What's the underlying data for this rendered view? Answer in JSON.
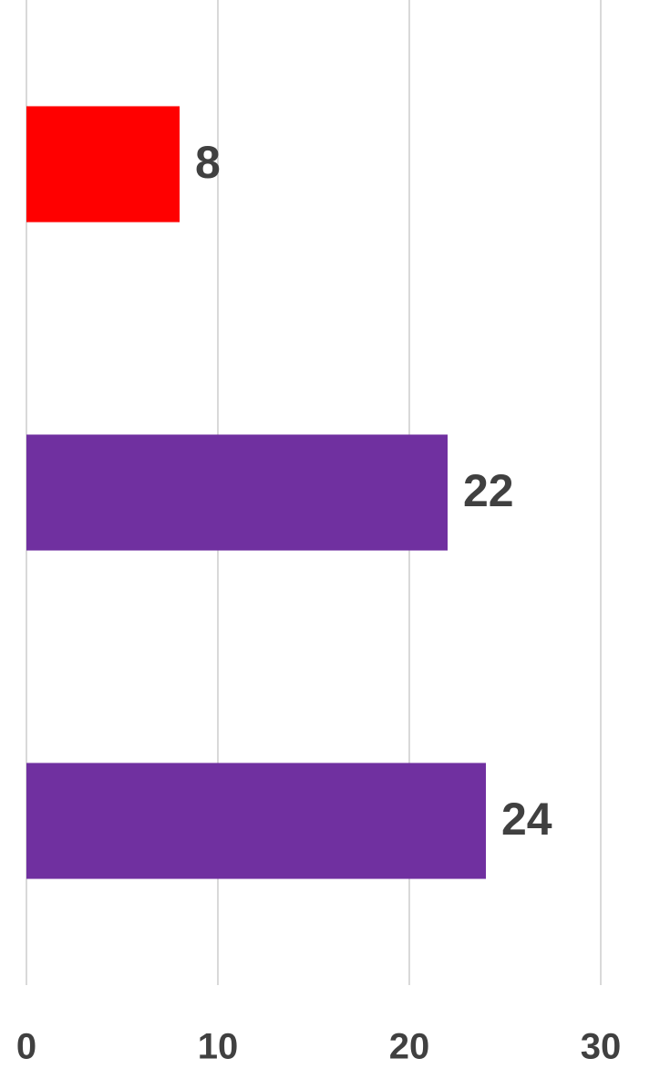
{
  "chart_data": {
    "type": "bar",
    "orientation": "horizontal",
    "categories": [
      null,
      null,
      null
    ],
    "values": [
      8,
      22,
      24
    ],
    "colors": [
      "#ff0000",
      "#7030a0",
      "#7030a0"
    ],
    "xlim": [
      0,
      30
    ],
    "xticks": [
      0,
      10,
      20,
      30
    ],
    "grid": true
  }
}
